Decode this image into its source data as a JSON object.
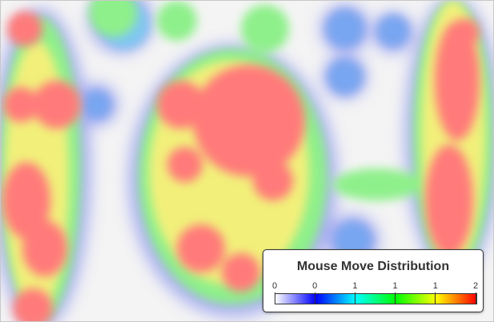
{
  "chart_data": {
    "type": "heatmap",
    "legend": {
      "title": "Mouse Move Distribution",
      "tick_labels": [
        "0",
        "0",
        "1",
        "1",
        "1",
        "2"
      ],
      "position": "bottom-right",
      "gradient": [
        "#ffffff",
        "#0000ff",
        "#00ffff",
        "#00ff00",
        "#ffff00",
        "#ff0000"
      ]
    },
    "colors": {
      "background": "#f4f4f4",
      "low": "#7fa8f2",
      "high": "#ff7a7a"
    },
    "grid": false
  }
}
